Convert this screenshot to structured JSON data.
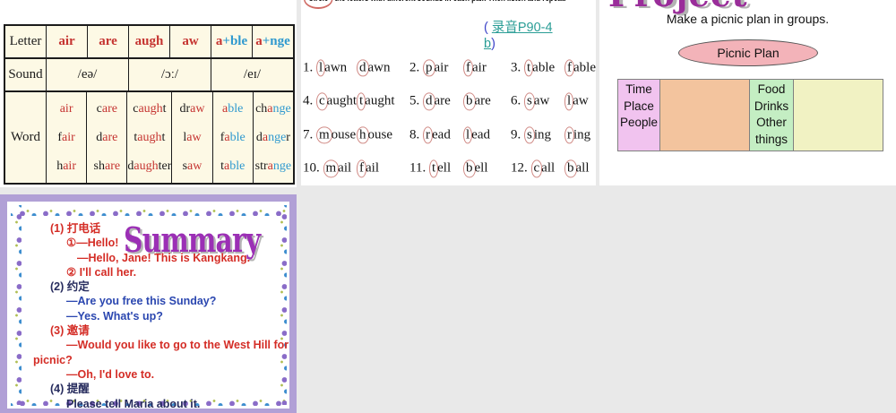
{
  "colors": {
    "phonics_red": "#c53431",
    "phonics_blue": "#2f99cf",
    "link_teal": "#2a9d96",
    "project_purple": "#9a2d9a",
    "summary_purple": "#9b2fb5",
    "summary_frame": "#b1a0d6",
    "oval_pink": "#f3b3b9",
    "cell_pink": "#f1c3ef",
    "cell_peach": "#f3c49e",
    "cell_green": "#c4eec3",
    "cell_yellow": "#f1f2c3"
  },
  "phonics_slide": {
    "row_labels": {
      "letter": "Letter",
      "sound": "Sound",
      "word": "Word"
    },
    "sounds": [
      "/eə/",
      "/ɔː/",
      "/eɪ/"
    ],
    "cols": [
      {
        "hr": "air",
        "hb": "",
        "w": [
          {
            "k1": "",
            "r": "air",
            "bl": "",
            "k2": ""
          },
          {
            "k1": "f",
            "r": "air",
            "bl": "",
            "k2": ""
          },
          {
            "k1": "h",
            "r": "air",
            "bl": "",
            "k2": ""
          }
        ]
      },
      {
        "hr": "are",
        "hb": "",
        "w": [
          {
            "k1": "c",
            "r": "are",
            "bl": "",
            "k2": ""
          },
          {
            "k1": "d",
            "r": "are",
            "bl": "",
            "k2": ""
          },
          {
            "k1": "sh",
            "r": "are",
            "bl": "",
            "k2": ""
          }
        ]
      },
      {
        "hr": "augh",
        "hb": "",
        "w": [
          {
            "k1": "c",
            "r": "augh",
            "bl": "",
            "k2": "t"
          },
          {
            "k1": "t",
            "r": "augh",
            "bl": "",
            "k2": "t"
          },
          {
            "k1": "d",
            "r": "augh",
            "bl": "",
            "k2": "ter"
          }
        ]
      },
      {
        "hr": "aw",
        "hb": "",
        "w": [
          {
            "k1": "dr",
            "r": "aw",
            "bl": "",
            "k2": ""
          },
          {
            "k1": "l",
            "r": "aw",
            "bl": "",
            "k2": ""
          },
          {
            "k1": "s",
            "r": "aw",
            "bl": "",
            "k2": ""
          }
        ]
      },
      {
        "hr": "a",
        "hb": "+ble",
        "w": [
          {
            "k1": "",
            "r": "a",
            "bl": "ble",
            "k2": ""
          },
          {
            "k1": "f",
            "r": "a",
            "bl": "ble",
            "k2": ""
          },
          {
            "k1": "t",
            "r": "a",
            "bl": "ble",
            "k2": ""
          }
        ]
      },
      {
        "hr": "a",
        "hb": "+nge",
        "w": [
          {
            "k1": "ch",
            "r": "a",
            "bl": "nge",
            "k2": ""
          },
          {
            "k1": "d",
            "r": "a",
            "bl": "nge",
            "k2": "r"
          },
          {
            "k1": "str",
            "r": "a",
            "bl": "nge",
            "k2": ""
          }
        ]
      }
    ]
  },
  "pairs_slide": {
    "title_circled": "Circle",
    "title_rest": " the letters with different sounds in each pair. Then listen and repeat.",
    "audio": {
      "open": "( ",
      "link1": "录音",
      "link2": "P90-4",
      "link3": "b",
      "close": ")"
    },
    "pairs": [
      {
        "num": "1.",
        "w1a": "l",
        "w1b": "awn",
        "w2a": "d",
        "w2b": "awn"
      },
      {
        "num": "2.",
        "w1a": "p",
        "w1b": "air",
        "w2a": "f",
        "w2b": "air"
      },
      {
        "num": "3.",
        "w1a": "t",
        "w1b": "able",
        "w2a": "f",
        "w2b": "able"
      },
      {
        "num": "4.",
        "w1a": "c",
        "w1b": "aught",
        "w2a": "t",
        "w2b": "aught"
      },
      {
        "num": "5.",
        "w1a": "d",
        "w1b": "are",
        "w2a": "b",
        "w2b": "are"
      },
      {
        "num": "6.",
        "w1a": "s",
        "w1b": "aw",
        "w2a": "l",
        "w2b": "aw"
      },
      {
        "num": "7.",
        "w1a": "m",
        "w1b": "ouse",
        "w2a": "h",
        "w2b": "ouse"
      },
      {
        "num": "8.",
        "w1a": "r",
        "w1b": "ead",
        "w2a": "l",
        "w2b": "ead"
      },
      {
        "num": "9.",
        "w1a": "s",
        "w1b": "ing",
        "w2a": "r",
        "w2b": "ing"
      },
      {
        "num": "10.",
        "w1a": "m",
        "w1b": "ail",
        "w2a": "f",
        "w2b": "ail"
      },
      {
        "num": "11.",
        "w1a": "t",
        "w1b": "ell",
        "w2a": "b",
        "w2b": "ell"
      },
      {
        "num": "12.",
        "w1a": "c",
        "w1b": "all",
        "w2a": "b",
        "w2b": "all"
      }
    ]
  },
  "project_slide": {
    "title": "Project",
    "subtitle": "Make a picnic plan in groups.",
    "oval_label": "Picnic Plan",
    "left_lines": [
      {
        "t": "Time"
      },
      {
        "t": "Place"
      },
      {
        "t": "People"
      }
    ],
    "right_lines": [
      {
        "t": "Food"
      },
      {
        "t": "Drinks"
      },
      {
        "t": "Other"
      },
      {
        "t": "things"
      }
    ]
  },
  "summary_slide": {
    "title": "Summary",
    "lines": [
      {
        "text": "(1) 打电话",
        "color": "red",
        "indent": 1
      },
      {
        "text": "①—Hello!",
        "color": "red",
        "indent": 2
      },
      {
        "text": "—Hello, Jane! This is Kangkang.",
        "color": "red",
        "indent": 3
      },
      {
        "text": "② I'll call her.",
        "color": "red",
        "indent": 2
      },
      {
        "text": "(2) 约定",
        "color": "navy",
        "indent": 1
      },
      {
        "text": "—Are you free this Sunday?",
        "color": "blue",
        "indent": 2
      },
      {
        "text": "—Yes. What's up?",
        "color": "blue",
        "indent": 2
      },
      {
        "text": "(3) 邀请",
        "color": "red",
        "indent": 1
      },
      {
        "text": "—Would you like to go to the West Hill for a",
        "color": "red",
        "indent": 2
      },
      {
        "text": "picnic?",
        "color": "red",
        "indent": 0
      },
      {
        "text": "—Oh, I'd love to.",
        "color": "red",
        "indent": 2
      },
      {
        "text": "(4) 提醒",
        "color": "navy",
        "indent": 1
      },
      {
        "text": "Please tell Maria about it.",
        "color": "navy",
        "indent": 2
      }
    ]
  }
}
